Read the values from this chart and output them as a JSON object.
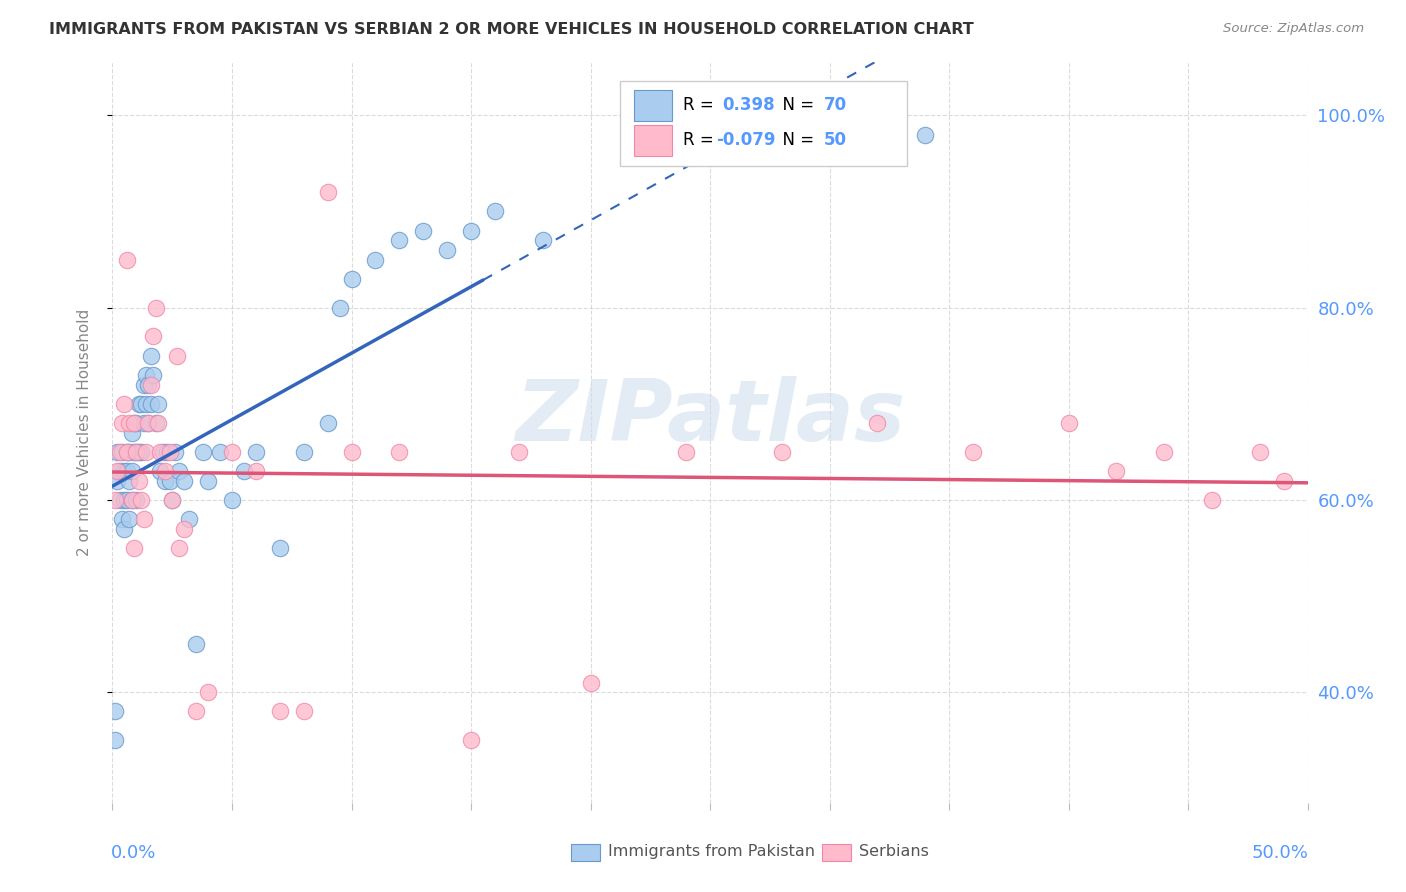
{
  "title": "IMMIGRANTS FROM PAKISTAN VS SERBIAN 2 OR MORE VEHICLES IN HOUSEHOLD CORRELATION CHART",
  "source": "Source: ZipAtlas.com",
  "ylabel": "2 or more Vehicles in Household",
  "xlim": [
    0.0,
    0.5
  ],
  "ylim": [
    0.285,
    1.055
  ],
  "r_pakistan": 0.398,
  "n_pakistan": 70,
  "r_serbian": -0.079,
  "n_serbian": 50,
  "watermark": "ZIPatlas",
  "blue_marker_color": "#AACCEE",
  "blue_edge_color": "#6699CC",
  "pink_marker_color": "#FFBBCC",
  "pink_edge_color": "#EE88AA",
  "blue_line_color": "#3366BB",
  "pink_line_color": "#DD5577",
  "pakistan_x": [
    0.001,
    0.001,
    0.002,
    0.002,
    0.003,
    0.003,
    0.004,
    0.004,
    0.005,
    0.005,
    0.005,
    0.006,
    0.006,
    0.006,
    0.007,
    0.007,
    0.007,
    0.008,
    0.008,
    0.008,
    0.009,
    0.009,
    0.01,
    0.01,
    0.01,
    0.011,
    0.011,
    0.012,
    0.012,
    0.013,
    0.013,
    0.014,
    0.014,
    0.015,
    0.015,
    0.016,
    0.016,
    0.017,
    0.018,
    0.019,
    0.02,
    0.021,
    0.022,
    0.023,
    0.024,
    0.025,
    0.026,
    0.028,
    0.03,
    0.032,
    0.035,
    0.038,
    0.04,
    0.045,
    0.05,
    0.055,
    0.06,
    0.07,
    0.08,
    0.09,
    0.095,
    0.1,
    0.11,
    0.12,
    0.13,
    0.14,
    0.15,
    0.16,
    0.18,
    0.34
  ],
  "pakistan_y": [
    0.38,
    0.35,
    0.62,
    0.65,
    0.6,
    0.63,
    0.58,
    0.65,
    0.6,
    0.63,
    0.57,
    0.6,
    0.65,
    0.63,
    0.58,
    0.62,
    0.65,
    0.6,
    0.63,
    0.67,
    0.65,
    0.68,
    0.6,
    0.65,
    0.68,
    0.65,
    0.7,
    0.65,
    0.7,
    0.68,
    0.72,
    0.7,
    0.73,
    0.68,
    0.72,
    0.7,
    0.75,
    0.73,
    0.68,
    0.7,
    0.63,
    0.65,
    0.62,
    0.65,
    0.62,
    0.6,
    0.65,
    0.63,
    0.62,
    0.58,
    0.45,
    0.65,
    0.62,
    0.65,
    0.6,
    0.63,
    0.65,
    0.55,
    0.65,
    0.68,
    0.8,
    0.83,
    0.85,
    0.87,
    0.88,
    0.86,
    0.88,
    0.9,
    0.87,
    0.98
  ],
  "serbian_x": [
    0.001,
    0.002,
    0.003,
    0.004,
    0.005,
    0.006,
    0.006,
    0.007,
    0.008,
    0.009,
    0.009,
    0.01,
    0.011,
    0.012,
    0.013,
    0.014,
    0.015,
    0.016,
    0.017,
    0.018,
    0.019,
    0.02,
    0.022,
    0.024,
    0.025,
    0.027,
    0.028,
    0.03,
    0.035,
    0.04,
    0.05,
    0.06,
    0.07,
    0.08,
    0.09,
    0.1,
    0.12,
    0.15,
    0.17,
    0.2,
    0.24,
    0.28,
    0.32,
    0.36,
    0.4,
    0.42,
    0.44,
    0.46,
    0.48,
    0.49
  ],
  "serbian_y": [
    0.6,
    0.63,
    0.65,
    0.68,
    0.7,
    0.65,
    0.85,
    0.68,
    0.6,
    0.55,
    0.68,
    0.65,
    0.62,
    0.6,
    0.58,
    0.65,
    0.68,
    0.72,
    0.77,
    0.8,
    0.68,
    0.65,
    0.63,
    0.65,
    0.6,
    0.75,
    0.55,
    0.57,
    0.38,
    0.4,
    0.65,
    0.63,
    0.38,
    0.38,
    0.92,
    0.65,
    0.65,
    0.35,
    0.65,
    0.41,
    0.65,
    0.65,
    0.68,
    0.65,
    0.68,
    0.63,
    0.65,
    0.6,
    0.65,
    0.62
  ],
  "y_ticks": [
    0.4,
    0.6,
    0.8,
    1.0
  ],
  "x_ticks": [
    0.0,
    0.05,
    0.1,
    0.15,
    0.2,
    0.25,
    0.3,
    0.35,
    0.4,
    0.45,
    0.5
  ]
}
